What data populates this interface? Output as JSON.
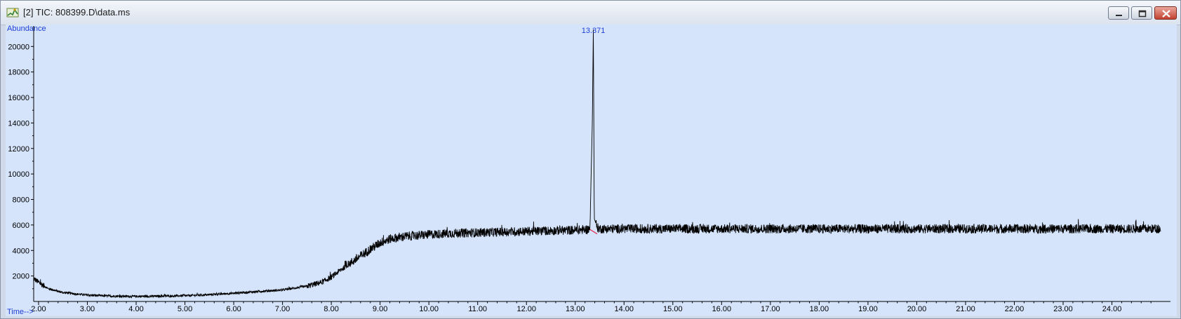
{
  "window": {
    "title": "[2] TIC: 808399.D\\data.ms",
    "icon": "chromatogram-app-icon",
    "controls": [
      "minimize-icon",
      "restore-icon",
      "close-icon"
    ]
  },
  "colors": {
    "plot_background": "#d5e4fb",
    "trace": "#000000",
    "axis_label": "#1f3fd6",
    "peak_label": "#1f3fd6",
    "baseline_marker": "#e0224a"
  },
  "chart_data": {
    "type": "line",
    "title": "",
    "ylabel": "Abundance",
    "xlabel": "Time-->",
    "xlim": [
      1.9,
      25.2
    ],
    "ylim": [
      0,
      21500
    ],
    "x_ticks": [
      "2.00",
      "3.00",
      "4.00",
      "5.00",
      "6.00",
      "7.00",
      "8.00",
      "9.00",
      "10.00",
      "11.00",
      "12.00",
      "13.00",
      "14.00",
      "15.00",
      "16.00",
      "17.00",
      "18.00",
      "19.00",
      "20.00",
      "21.00",
      "22.00",
      "23.00",
      "24.00"
    ],
    "y_ticks": [
      "2000",
      "4000",
      "6000",
      "8000",
      "10000",
      "12000",
      "14000",
      "16000",
      "18000",
      "20000"
    ],
    "grid": false,
    "series": [
      {
        "x": [
          1.9,
          2.0,
          2.2,
          2.5,
          3.0,
          3.5,
          4.0,
          4.5,
          5.0,
          5.5,
          6.0,
          6.5,
          7.0,
          7.5,
          7.8,
          8.0,
          8.2,
          8.5,
          8.8,
          9.0,
          9.2,
          9.5,
          10.0,
          10.5,
          11.0,
          11.5,
          12.0,
          12.5,
          13.0,
          13.3,
          13.35,
          13.371,
          13.39,
          13.45,
          13.5,
          14.0,
          15.0,
          16.0,
          17.0,
          18.0,
          19.0,
          20.0,
          21.0,
          22.0,
          23.0,
          24.0,
          25.0
        ],
        "y": [
          1800,
          1500,
          1000,
          700,
          500,
          420,
          400,
          420,
          450,
          530,
          650,
          780,
          900,
          1200,
          1500,
          1900,
          2500,
          3300,
          4100,
          4600,
          4900,
          5100,
          5250,
          5350,
          5400,
          5450,
          5500,
          5550,
          5600,
          5650,
          14000,
          21500,
          6500,
          5800,
          5700,
          5700,
          5700,
          5700,
          5700,
          5700,
          5700,
          5700,
          5700,
          5700,
          5700,
          5700,
          5700
        ]
      }
    ],
    "annotations": [
      {
        "text": "13.371",
        "x": 13.371,
        "y": 21500
      }
    ],
    "baseline_segment": {
      "x": [
        13.3,
        13.45
      ],
      "y": [
        5650,
        5300
      ]
    }
  }
}
